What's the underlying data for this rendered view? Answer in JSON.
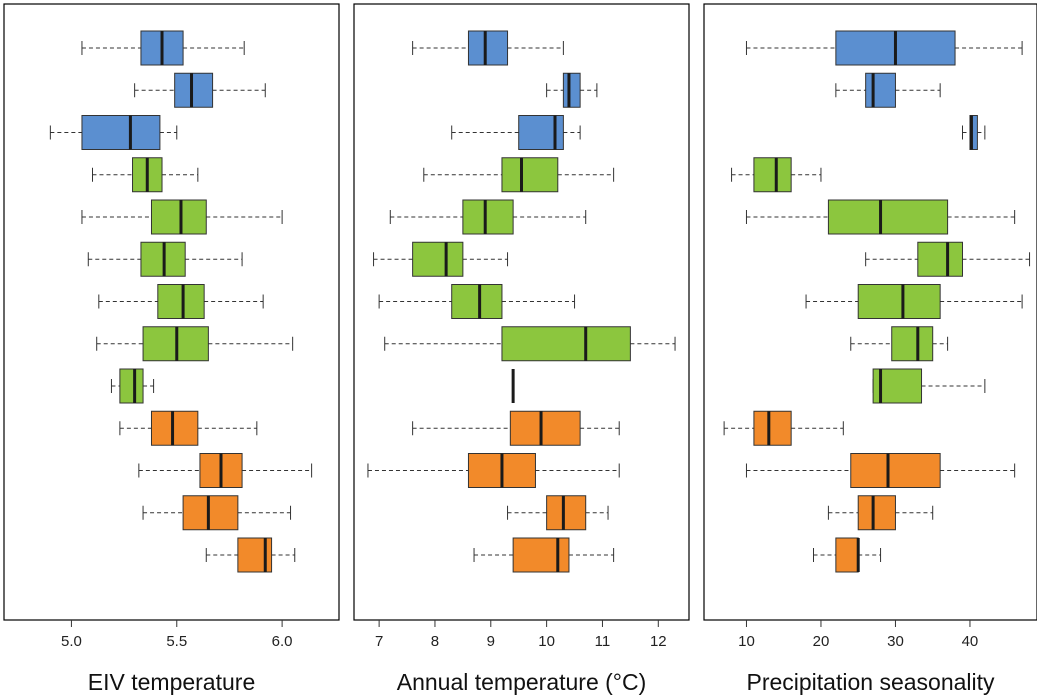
{
  "colors": {
    "group1": "#5b8fd0",
    "group2": "#8cc63e",
    "group3": "#f28a2a"
  },
  "chart_data": [
    {
      "type": "boxplot",
      "orientation": "horizontal",
      "xlabel": "EIV temperature",
      "ylabel": "",
      "xlim": [
        4.68,
        6.27
      ],
      "ticks": [
        5.0,
        5.5,
        6.0
      ],
      "tick_labels": [
        "5.0",
        "5.5",
        "6.0"
      ],
      "grid": false,
      "series": [
        {
          "group": "group1",
          "min": 5.05,
          "q1": 5.33,
          "median": 5.43,
          "q3": 5.53,
          "max": 5.82
        },
        {
          "group": "group1",
          "min": 5.3,
          "q1": 5.49,
          "median": 5.57,
          "q3": 5.67,
          "max": 5.92
        },
        {
          "group": "group1",
          "min": 4.9,
          "q1": 5.05,
          "median": 5.28,
          "q3": 5.42,
          "max": 5.5
        },
        {
          "group": "group2",
          "min": 5.1,
          "q1": 5.29,
          "median": 5.36,
          "q3": 5.43,
          "max": 5.6
        },
        {
          "group": "group2",
          "min": 5.05,
          "q1": 5.38,
          "median": 5.52,
          "q3": 5.64,
          "max": 6.0
        },
        {
          "group": "group2",
          "min": 5.08,
          "q1": 5.33,
          "median": 5.44,
          "q3": 5.54,
          "max": 5.81
        },
        {
          "group": "group2",
          "min": 5.13,
          "q1": 5.41,
          "median": 5.53,
          "q3": 5.63,
          "max": 5.91
        },
        {
          "group": "group2",
          "min": 5.12,
          "q1": 5.34,
          "median": 5.5,
          "q3": 5.65,
          "max": 6.05
        },
        {
          "group": "group2",
          "min": 5.19,
          "q1": 5.23,
          "median": 5.3,
          "q3": 5.34,
          "max": 5.39
        },
        {
          "group": "group3",
          "min": 5.23,
          "q1": 5.38,
          "median": 5.48,
          "q3": 5.6,
          "max": 5.88
        },
        {
          "group": "group3",
          "min": 5.32,
          "q1": 5.61,
          "median": 5.71,
          "q3": 5.81,
          "max": 6.14
        },
        {
          "group": "group3",
          "min": 5.34,
          "q1": 5.53,
          "median": 5.65,
          "q3": 5.79,
          "max": 6.04
        },
        {
          "group": "group3",
          "min": 5.64,
          "q1": 5.79,
          "median": 5.92,
          "q3": 5.95,
          "max": 6.06
        }
      ]
    },
    {
      "type": "boxplot",
      "orientation": "horizontal",
      "xlabel": "Annual temperature (°C)",
      "ylabel": "",
      "xlim": [
        6.55,
        12.55
      ],
      "ticks": [
        7,
        8,
        9,
        10,
        11,
        12
      ],
      "tick_labels": [
        "7",
        "8",
        "9",
        "10",
        "11",
        "12"
      ],
      "grid": false,
      "series": [
        {
          "group": "group1",
          "min": 7.6,
          "q1": 8.6,
          "median": 8.9,
          "q3": 9.3,
          "max": 10.3
        },
        {
          "group": "group1",
          "min": 10.0,
          "q1": 10.3,
          "median": 10.4,
          "q3": 10.6,
          "max": 10.9
        },
        {
          "group": "group1",
          "min": 8.3,
          "q1": 9.5,
          "median": 10.15,
          "q3": 10.3,
          "max": 10.6
        },
        {
          "group": "group2",
          "min": 7.8,
          "q1": 9.2,
          "median": 9.55,
          "q3": 10.2,
          "max": 11.2
        },
        {
          "group": "group2",
          "min": 7.2,
          "q1": 8.5,
          "median": 8.9,
          "q3": 9.4,
          "max": 10.7
        },
        {
          "group": "group2",
          "min": 6.9,
          "q1": 7.6,
          "median": 8.2,
          "q3": 8.5,
          "max": 9.3
        },
        {
          "group": "group2",
          "min": 7.0,
          "q1": 8.3,
          "median": 8.8,
          "q3": 9.2,
          "max": 10.5
        },
        {
          "group": "group2",
          "min": 7.1,
          "q1": 9.2,
          "median": 10.7,
          "q3": 11.5,
          "max": 12.3
        },
        {
          "group": "group2",
          "min": 9.4,
          "q1": 9.4,
          "median": 9.4,
          "q3": 9.4,
          "max": 9.4
        },
        {
          "group": "group3",
          "min": 7.6,
          "q1": 9.35,
          "median": 9.9,
          "q3": 10.6,
          "max": 11.3
        },
        {
          "group": "group3",
          "min": 6.8,
          "q1": 8.6,
          "median": 9.2,
          "q3": 9.8,
          "max": 11.3
        },
        {
          "group": "group3",
          "min": 9.3,
          "q1": 10.0,
          "median": 10.3,
          "q3": 10.7,
          "max": 11.1
        },
        {
          "group": "group3",
          "min": 8.7,
          "q1": 9.4,
          "median": 10.2,
          "q3": 10.4,
          "max": 11.2
        }
      ]
    },
    {
      "type": "boxplot",
      "orientation": "horizontal",
      "xlabel": "Precipitation seasonality",
      "ylabel": "",
      "xlim": [
        4.3,
        49.0
      ],
      "ticks": [
        10,
        20,
        30,
        40
      ],
      "tick_labels": [
        "10",
        "20",
        "30",
        "40"
      ],
      "grid": false,
      "series": [
        {
          "group": "group1",
          "min": 10,
          "q1": 22,
          "median": 30,
          "q3": 38,
          "max": 47
        },
        {
          "group": "group1",
          "min": 22,
          "q1": 26,
          "median": 27,
          "q3": 30,
          "max": 36
        },
        {
          "group": "group1",
          "min": 39,
          "q1": 40,
          "median": 40.2,
          "q3": 41,
          "max": 42
        },
        {
          "group": "group2",
          "min": 8,
          "q1": 11,
          "median": 14,
          "q3": 16,
          "max": 20
        },
        {
          "group": "group2",
          "min": 10,
          "q1": 21,
          "median": 28,
          "q3": 37,
          "max": 46
        },
        {
          "group": "group2",
          "min": 26,
          "q1": 33,
          "median": 37,
          "q3": 39,
          "max": 48
        },
        {
          "group": "group2",
          "min": 18,
          "q1": 25,
          "median": 31,
          "q3": 36,
          "max": 47
        },
        {
          "group": "group2",
          "min": 24,
          "q1": 29.5,
          "median": 33,
          "q3": 35,
          "max": 37
        },
        {
          "group": "group2",
          "min": 27,
          "q1": 27,
          "median": 28,
          "q3": 33.5,
          "max": 42
        },
        {
          "group": "group3",
          "min": 7,
          "q1": 11,
          "median": 13,
          "q3": 16,
          "max": 23
        },
        {
          "group": "group3",
          "min": 10,
          "q1": 24,
          "median": 29,
          "q3": 36,
          "max": 46
        },
        {
          "group": "group3",
          "min": 21,
          "q1": 25,
          "median": 27,
          "q3": 30,
          "max": 35
        },
        {
          "group": "group3",
          "min": 19,
          "q1": 22,
          "median": 25,
          "q3": 25,
          "max": 28
        }
      ]
    }
  ]
}
